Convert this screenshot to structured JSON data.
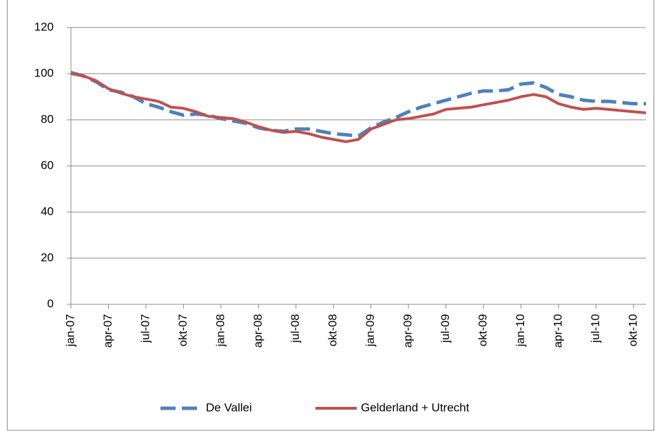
{
  "chart_data": {
    "type": "line",
    "categories": [
      "jan-07",
      null,
      null,
      "apr-07",
      null,
      null,
      "jul-07",
      null,
      null,
      "okt-07",
      null,
      null,
      "jan-08",
      null,
      null,
      "apr-08",
      null,
      null,
      "jul-08",
      null,
      null,
      "okt-08",
      null,
      null,
      "jan-09",
      null,
      null,
      "apr-09",
      null,
      null,
      "jul-09",
      null,
      null,
      "okt-09",
      null,
      null,
      "jan-10",
      null,
      null,
      "apr-10",
      null,
      null,
      "jul-10",
      null,
      null,
      "okt-10",
      null
    ],
    "series": [
      {
        "name": "De Vallei",
        "color": "#4f81bd",
        "dashed": true,
        "values": [
          100.5,
          99,
          96.5,
          93,
          92,
          90,
          87,
          85.5,
          83.5,
          82,
          82.5,
          82,
          80.5,
          79.5,
          78.5,
          76.5,
          75.5,
          75,
          76,
          76,
          75,
          74,
          73.5,
          73,
          76.5,
          79,
          81,
          83.5,
          85.5,
          87,
          88.5,
          90,
          91.5,
          92.5,
          92.5,
          93,
          95.5,
          96,
          94,
          91,
          90,
          88.5,
          88,
          88,
          87.5,
          87,
          87
        ]
      },
      {
        "name": "Gelderland + Utrecht",
        "color": "#c0504d",
        "dashed": false,
        "values": [
          100,
          99,
          97,
          93.5,
          91.5,
          90,
          89,
          88,
          85.5,
          85,
          83.5,
          81.5,
          81,
          80.5,
          79,
          77,
          75.5,
          74.5,
          75,
          74,
          72.5,
          71.5,
          70.5,
          71.5,
          76,
          78,
          80,
          80.5,
          81.5,
          82.5,
          84.5,
          85,
          85.5,
          86.5,
          87.5,
          88.5,
          90,
          91,
          90,
          87,
          85.5,
          84.5,
          85,
          84.5,
          84,
          83.5,
          83
        ]
      }
    ],
    "ylim": [
      0,
      120
    ],
    "yticks": [
      0,
      20,
      40,
      60,
      80,
      100,
      120
    ],
    "grid": true,
    "legend": "bottom"
  }
}
